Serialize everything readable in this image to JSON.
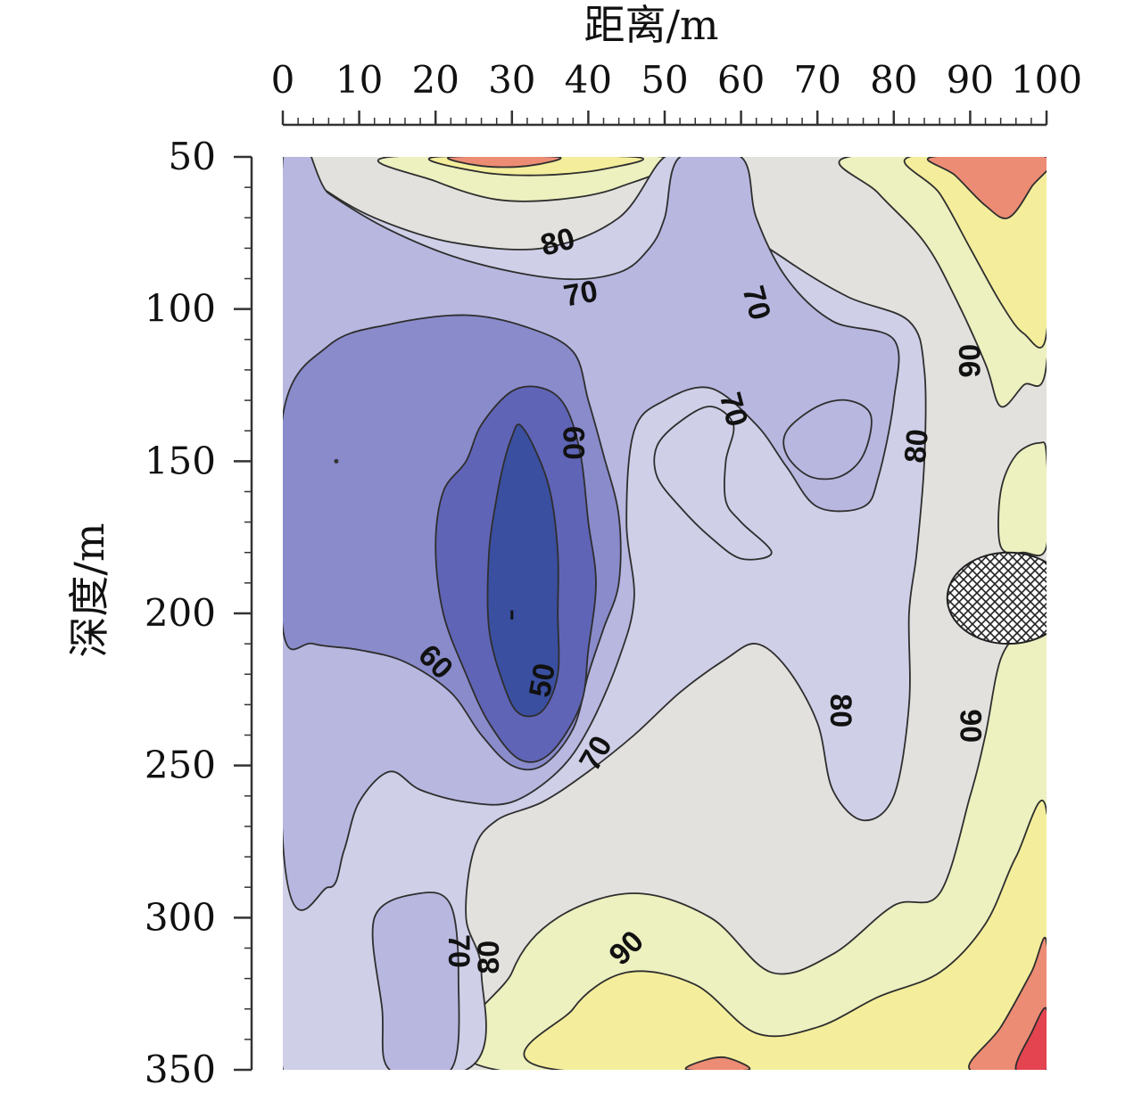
{
  "chart_data": {
    "type": "heatmap",
    "subtype": "filled-contour",
    "xlabel": "距离/m",
    "ylabel": "深度/m",
    "x_axis_position": "top",
    "y_axis_inverted": true,
    "xlim": [
      0,
      100
    ],
    "ylim": [
      50,
      350
    ],
    "x_ticks": [
      "0",
      "10",
      "20",
      "30",
      "40",
      "50",
      "60",
      "70",
      "80",
      "90",
      "100"
    ],
    "y_ticks": [
      "50",
      "100",
      "150",
      "200",
      "250",
      "300",
      "350"
    ],
    "contour_levels": [
      50,
      60,
      70,
      80,
      90
    ],
    "contour_labels": [
      {
        "text": "80",
        "x": 36,
        "y": 78,
        "rotate": -15
      },
      {
        "text": "70",
        "x": 39,
        "y": 95,
        "rotate": -10
      },
      {
        "text": "70",
        "x": 62,
        "y": 98,
        "rotate": 75
      },
      {
        "text": "90",
        "x": 90,
        "y": 117,
        "rotate": -90
      },
      {
        "text": "70",
        "x": 59,
        "y": 133,
        "rotate": 75
      },
      {
        "text": "60",
        "x": 38,
        "y": 144,
        "rotate": 90
      },
      {
        "text": "80",
        "x": 83,
        "y": 145,
        "rotate": -85
      },
      {
        "text": "60",
        "x": 20,
        "y": 216,
        "rotate": 45
      },
      {
        "text": "50",
        "x": 34,
        "y": 222,
        "rotate": -80
      },
      {
        "text": "80",
        "x": 73,
        "y": 232,
        "rotate": 90
      },
      {
        "text": "90",
        "x": 90,
        "y": 237,
        "rotate": 90
      },
      {
        "text": "70",
        "x": 41,
        "y": 246,
        "rotate": -60
      },
      {
        "text": "90",
        "x": 45,
        "y": 310,
        "rotate": -45
      },
      {
        "text": "70",
        "x": 23,
        "y": 311,
        "rotate": 90
      },
      {
        "text": "80",
        "x": 27,
        "y": 313,
        "rotate": -90
      }
    ],
    "colors": {
      "v45": "#3a4fa0",
      "v55": "#5f64b6",
      "v65": "#8a8bcb",
      "v75": "#b7b7e0",
      "v80": "#cfcfe8",
      "v85": "#e2e1de",
      "v92": "#edf0bf",
      "v100": "#f4ee9c",
      "v110": "#ec8c74",
      "v120": "#e34450",
      "line": "#2e2e2e",
      "void_fill": "#ffffff",
      "void_pattern": "#222222"
    },
    "void_region": {
      "center_x": 95,
      "center_y": 195,
      "radius_x": 8,
      "radius_y": 15
    },
    "grid": false,
    "legend": "none"
  }
}
